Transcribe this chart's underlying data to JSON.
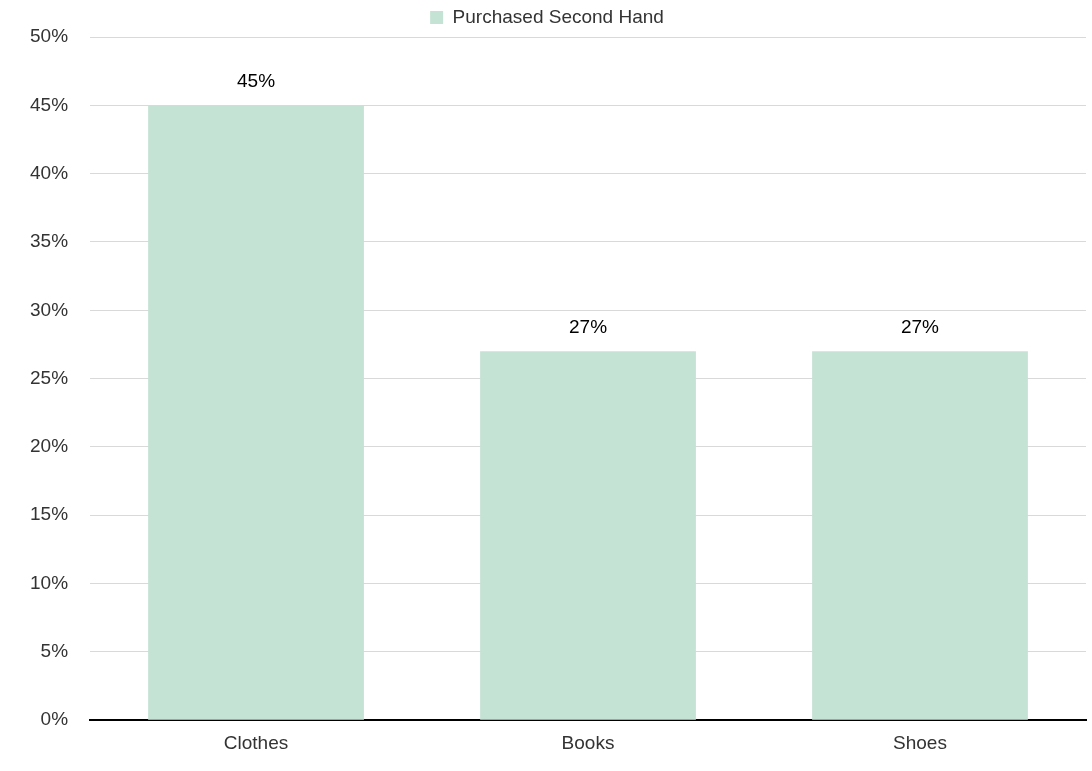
{
  "chart_data": {
    "type": "bar",
    "categories": [
      "Clothes",
      "Books",
      "Shoes"
    ],
    "series": [
      {
        "name": "Purchased Second Hand",
        "color": "#c5e3d5",
        "values": [
          45,
          27,
          27
        ],
        "value_labels": [
          "45%",
          "27%",
          "27%"
        ]
      }
    ],
    "ylim": [
      0,
      50
    ],
    "yticks": [
      {
        "value": 0,
        "label": "0%"
      },
      {
        "value": 5,
        "label": "5%"
      },
      {
        "value": 10,
        "label": "10%"
      },
      {
        "value": 15,
        "label": "15%"
      },
      {
        "value": 20,
        "label": "20%"
      },
      {
        "value": 25,
        "label": "25%"
      },
      {
        "value": 30,
        "label": "30%"
      },
      {
        "value": 35,
        "label": "35%"
      },
      {
        "value": 40,
        "label": "40%"
      },
      {
        "value": 45,
        "label": "45%"
      },
      {
        "value": 50,
        "label": "50%"
      }
    ],
    "grid": "y",
    "legend": "top"
  }
}
